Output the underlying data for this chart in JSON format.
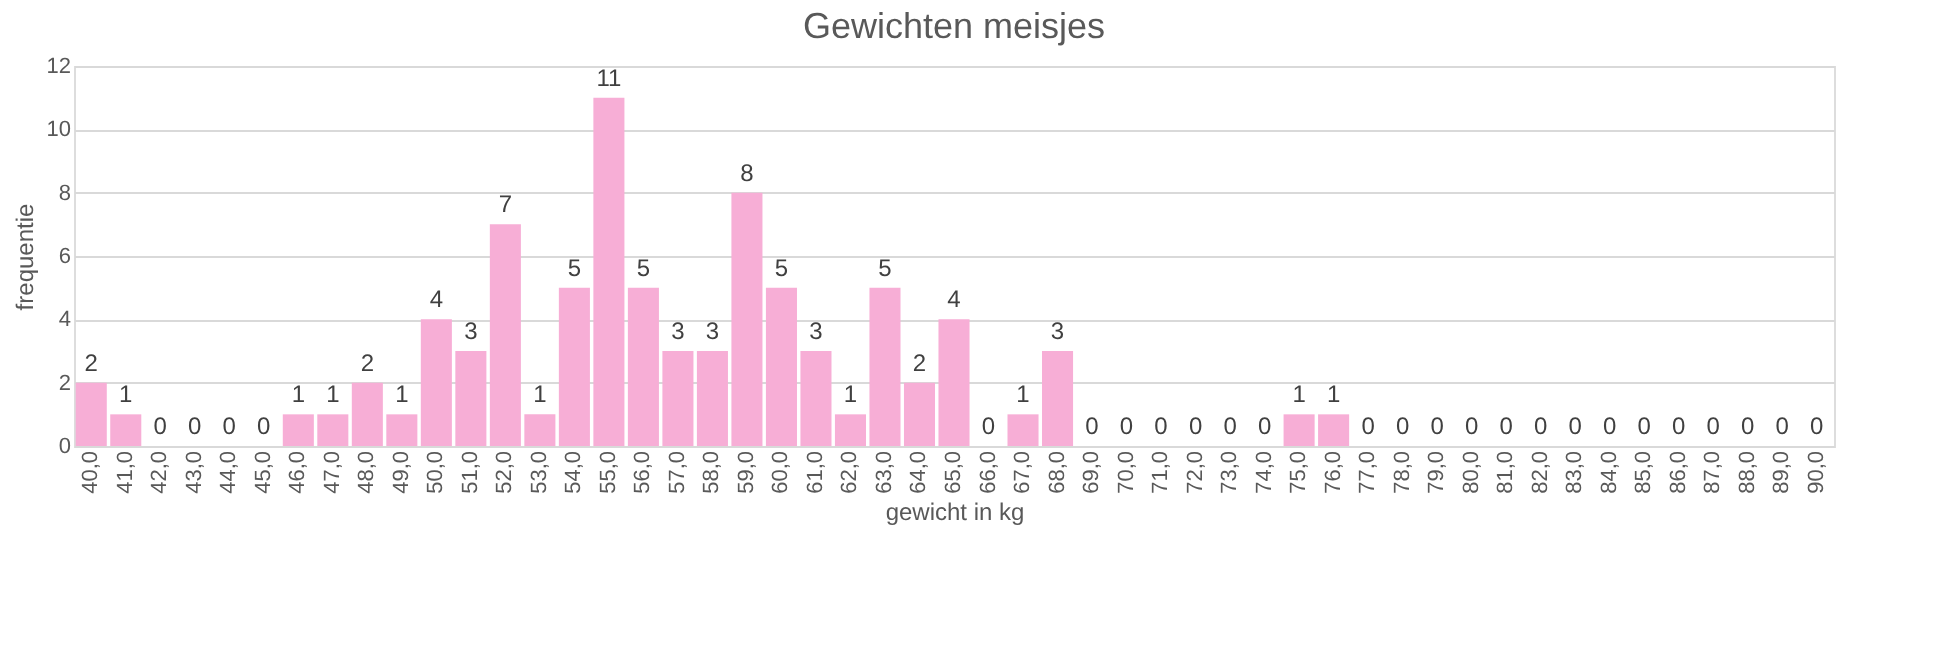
{
  "chart_data": {
    "type": "bar",
    "title": "Gewichten meisjes",
    "xlabel": "gewicht in kg",
    "ylabel": "frequentie",
    "categories": [
      "40,0",
      "41,0",
      "42,0",
      "43,0",
      "44,0",
      "45,0",
      "46,0",
      "47,0",
      "48,0",
      "49,0",
      "50,0",
      "51,0",
      "52,0",
      "53,0",
      "54,0",
      "55,0",
      "56,0",
      "57,0",
      "58,0",
      "59,0",
      "60,0",
      "61,0",
      "62,0",
      "63,0",
      "64,0",
      "65,0",
      "66,0",
      "67,0",
      "68,0",
      "69,0",
      "70,0",
      "71,0",
      "72,0",
      "73,0",
      "74,0",
      "75,0",
      "76,0",
      "77,0",
      "78,0",
      "79,0",
      "80,0",
      "81,0",
      "82,0",
      "83,0",
      "84,0",
      "85,0",
      "86,0",
      "87,0",
      "88,0",
      "89,0",
      "90,0"
    ],
    "values": [
      2,
      1,
      0,
      0,
      0,
      0,
      1,
      1,
      2,
      1,
      4,
      3,
      7,
      1,
      5,
      11,
      5,
      3,
      3,
      8,
      5,
      3,
      1,
      5,
      2,
      4,
      0,
      1,
      3,
      0,
      0,
      0,
      0,
      0,
      0,
      1,
      1,
      0,
      0,
      0,
      0,
      0,
      0,
      0,
      0,
      0,
      0,
      0,
      0,
      0,
      0
    ],
    "color": "#f7aed6",
    "ylim": [
      0,
      12
    ],
    "yticks": [
      0,
      2,
      4,
      6,
      8,
      10,
      12
    ],
    "grid": "y",
    "data_labels": true
  }
}
